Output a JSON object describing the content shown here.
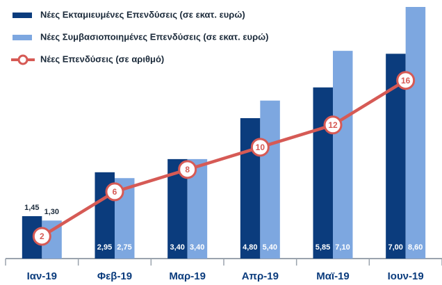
{
  "chart_data": {
    "type": "bar-line",
    "categories": [
      "Ιαν-19",
      "Φεβ-19",
      "Μαρ-19",
      "Απρ-19",
      "Μαϊ-19",
      "Ιουν-19"
    ],
    "series": [
      {
        "name": "Νέες Εκταμιευμένες Επενδύσεις (σε εκατ. ευρώ)",
        "type": "bar",
        "color": "#0b3c7d",
        "values": [
          1.45,
          2.95,
          3.4,
          4.8,
          5.85,
          7.0
        ],
        "value_labels": [
          "1,45",
          "2,95",
          "3,40",
          "4,80",
          "5,85",
          "7,00"
        ]
      },
      {
        "name": "Νέες Συμβασιοποιημένες Επενδύσεις (σε εκατ. ευρώ)",
        "type": "bar",
        "color": "#7da7e0",
        "values": [
          1.3,
          2.75,
          3.4,
          5.4,
          7.1,
          8.6
        ],
        "value_labels": [
          "1,30",
          "2,75",
          "3,40",
          "5,40",
          "7,10",
          "8,60"
        ]
      },
      {
        "name": "Νέες Επενδύσεις (σε αριθμό)",
        "type": "line",
        "axis": "y2",
        "color": "#d65a55",
        "values": [
          2,
          6,
          8,
          10,
          12,
          16
        ]
      }
    ],
    "ylim": [
      0,
      8.6
    ],
    "y2lim": [
      0,
      22.6
    ],
    "legend": "top-left"
  }
}
